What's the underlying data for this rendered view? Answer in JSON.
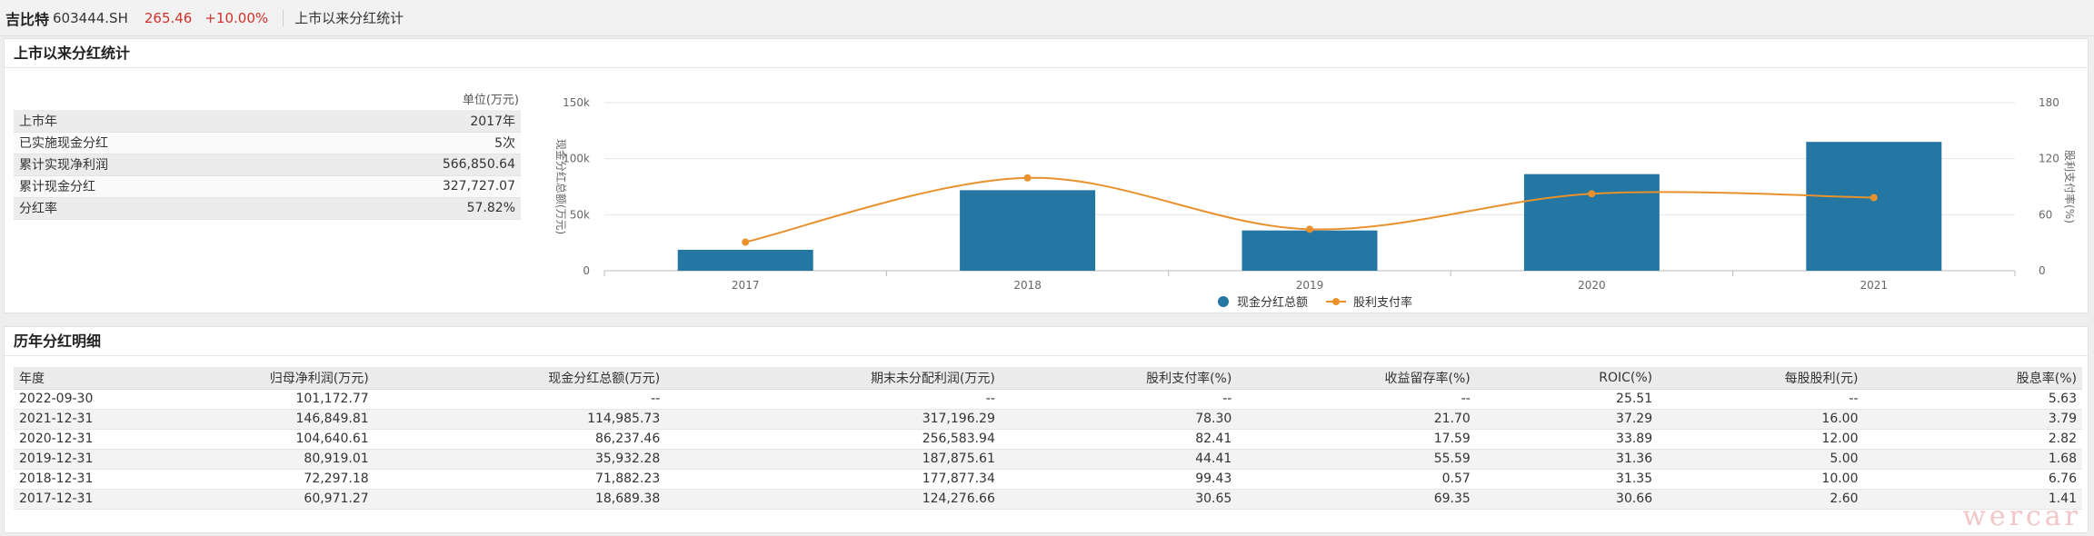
{
  "header": {
    "stock_name": "吉比特",
    "stock_code": "603444.SH",
    "price": "265.46",
    "change": "+10.00%",
    "breadcrumb": "上市以来分红统计"
  },
  "summary": {
    "title": "上市以来分红统计",
    "unit": "单位(万元)",
    "rows": [
      {
        "label": "上市年",
        "value": "2017年"
      },
      {
        "label": "已实施现金分红",
        "value": "5次"
      },
      {
        "label": "累计实现净利润",
        "value": "566,850.64"
      },
      {
        "label": "累计现金分红",
        "value": "327,727.07"
      },
      {
        "label": "分红率",
        "value": "57.82%"
      }
    ]
  },
  "chart_data": {
    "type": "bar",
    "categories": [
      "2017",
      "2018",
      "2019",
      "2020",
      "2021"
    ],
    "series": [
      {
        "name": "现金分红总额",
        "kind": "bar",
        "axis": "left",
        "values": [
          18689.38,
          71882.23,
          35932.28,
          86237.46,
          114985.73
        ],
        "color": "#2476a3"
      },
      {
        "name": "股利支付率",
        "kind": "line",
        "axis": "right",
        "values": [
          30.65,
          99.43,
          44.41,
          82.41,
          78.3
        ],
        "color": "#e8912d"
      }
    ],
    "ylabel": "现金分红总额(万元)",
    "y2label": "股利支付率(%)",
    "ylim": [
      0,
      150000
    ],
    "y2lim": [
      0,
      180
    ],
    "yticks": [
      "0",
      "50k",
      "100k",
      "150k"
    ],
    "y2ticks": [
      "0",
      "60",
      "120",
      "180"
    ],
    "legend_position": "bottom",
    "grid": true
  },
  "detail": {
    "title": "历年分红明细",
    "columns": [
      "年度",
      "归母净利润(万元)",
      "现金分红总额(万元)",
      "期末未分配利润(万元)",
      "股利支付率(%)",
      "收益留存率(%)",
      "ROIC(%)",
      "每股股利(元)",
      "股息率(%)"
    ],
    "rows": [
      [
        "2022-09-30",
        "101,172.77",
        "--",
        "--",
        "--",
        "--",
        "25.51",
        "--",
        "5.63"
      ],
      [
        "2021-12-31",
        "146,849.81",
        "114,985.73",
        "317,196.29",
        "78.30",
        "21.70",
        "37.29",
        "16.00",
        "3.79"
      ],
      [
        "2020-12-31",
        "104,640.61",
        "86,237.46",
        "256,583.94",
        "82.41",
        "17.59",
        "33.89",
        "12.00",
        "2.82"
      ],
      [
        "2019-12-31",
        "80,919.01",
        "35,932.28",
        "187,875.61",
        "44.41",
        "55.59",
        "31.36",
        "5.00",
        "1.68"
      ],
      [
        "2018-12-31",
        "72,297.18",
        "71,882.23",
        "177,877.34",
        "99.43",
        "0.57",
        "31.35",
        "10.00",
        "6.76"
      ],
      [
        "2017-12-31",
        "60,971.27",
        "18,689.38",
        "124,276.66",
        "30.65",
        "69.35",
        "30.66",
        "2.60",
        "1.41"
      ]
    ]
  },
  "watermark": "wercar"
}
